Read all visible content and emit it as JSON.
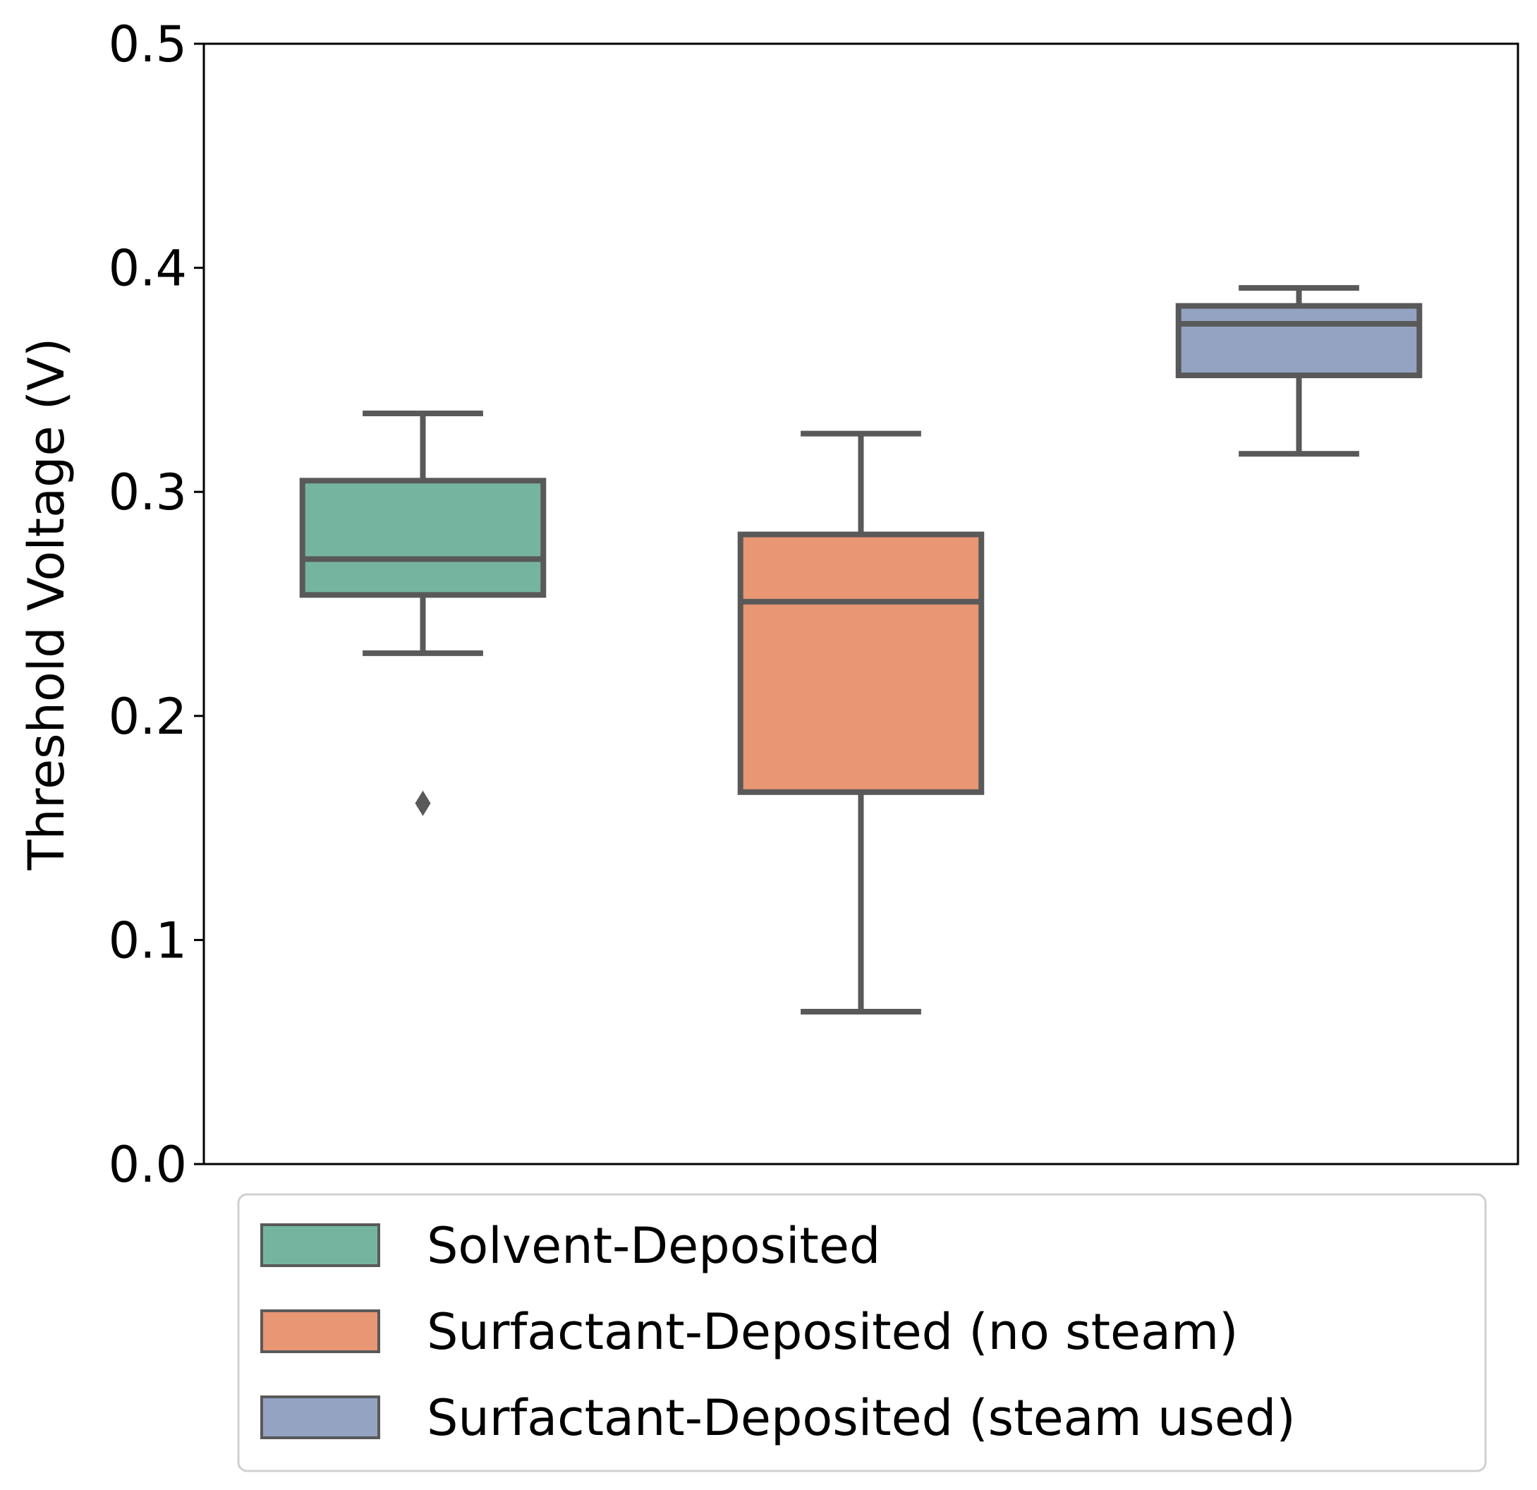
{
  "chart_data": {
    "type": "box",
    "ylabel": "Threshold Voltage (V)",
    "xlabel": "",
    "ylim": [
      0.0,
      0.5
    ],
    "yticks": [
      "0.0",
      "0.1",
      "0.2",
      "0.3",
      "0.4",
      "0.5"
    ],
    "grid": false,
    "legend_position": "bottom",
    "box_edge_color": "#595959",
    "series": [
      {
        "name": "Solvent-Deposited",
        "color": "#75b5a0",
        "whisker_low": 0.228,
        "q1": 0.254,
        "median": 0.27,
        "q3": 0.305,
        "whisker_high": 0.335,
        "outliers": [
          0.161
        ]
      },
      {
        "name": "Surfactant-Deposited (no steam)",
        "color": "#e89674",
        "whisker_low": 0.068,
        "q1": 0.166,
        "median": 0.251,
        "q3": 0.281,
        "whisker_high": 0.326,
        "outliers": []
      },
      {
        "name": "Surfactant-Deposited (steam used)",
        "color": "#94a3c2",
        "whisker_low": 0.317,
        "q1": 0.352,
        "median": 0.375,
        "q3": 0.383,
        "whisker_high": 0.391,
        "outliers": []
      }
    ]
  }
}
